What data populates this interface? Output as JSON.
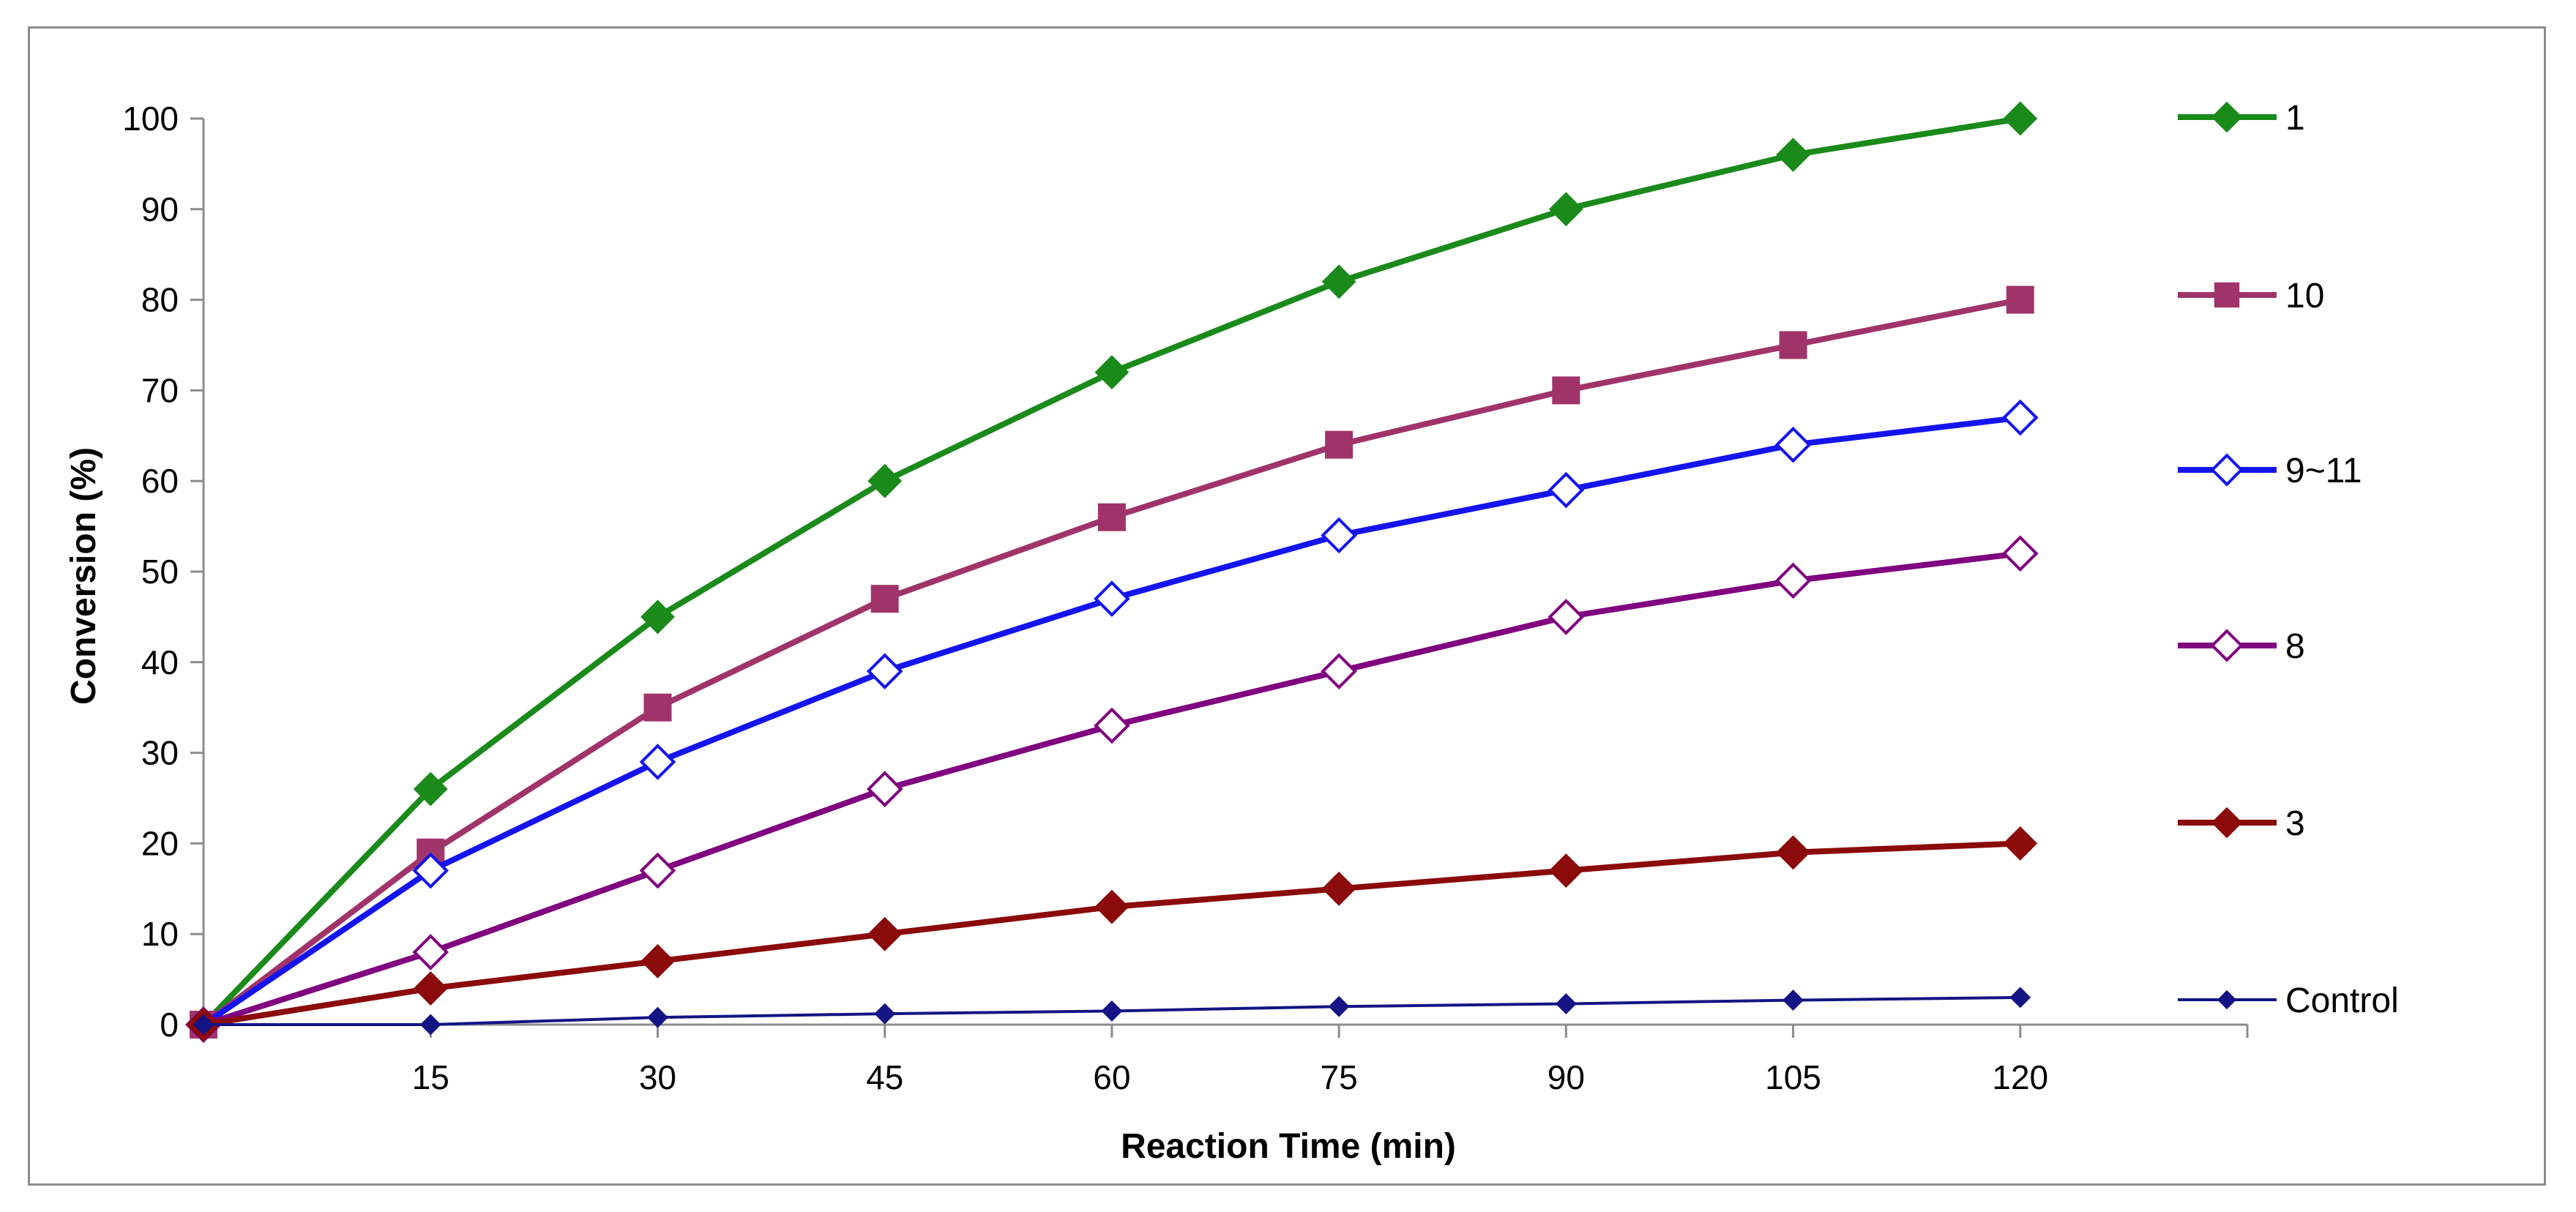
{
  "chart_data": {
    "type": "line",
    "title": "",
    "xlabel": "Reaction Time (min)",
    "ylabel": "Conversion (%)",
    "x": [
      0,
      15,
      30,
      45,
      60,
      75,
      90,
      105,
      120
    ],
    "x_tick_labels": [
      "15",
      "30",
      "45",
      "60",
      "75",
      "90",
      "105",
      "120"
    ],
    "x_tick_values": [
      15,
      30,
      45,
      60,
      75,
      90,
      105,
      120
    ],
    "xlim": [
      0,
      135
    ],
    "ylim": [
      0,
      100
    ],
    "y_ticks": [
      0,
      10,
      20,
      30,
      40,
      50,
      60,
      70,
      80,
      90,
      100
    ],
    "grid": false,
    "legend_position": "right",
    "series": [
      {
        "name": "1",
        "color": "#1a8a1a",
        "marker": "diamond-filled",
        "values": [
          0,
          26,
          45,
          60,
          72,
          82,
          90,
          96,
          100
        ]
      },
      {
        "name": "10",
        "color": "#a0346a",
        "marker": "square-filled",
        "values": [
          0,
          19,
          35,
          47,
          56,
          64,
          70,
          75,
          80
        ]
      },
      {
        "name": "9~11",
        "color": "#1414f0",
        "marker": "diamond-open",
        "values": [
          0,
          17,
          29,
          39,
          47,
          54,
          59,
          64,
          67
        ]
      },
      {
        "name": "8",
        "color": "#800080",
        "marker": "diamond-open",
        "values": [
          0,
          8,
          17,
          26,
          33,
          39,
          45,
          49,
          52
        ]
      },
      {
        "name": "3",
        "color": "#8b0a0a",
        "marker": "diamond-filled",
        "values": [
          0,
          4,
          7,
          10,
          13,
          15,
          17,
          19,
          20
        ]
      },
      {
        "name": "Control",
        "color": "#141485",
        "marker": "diamond-small",
        "values": [
          0,
          0,
          0.8,
          1.2,
          1.5,
          2,
          2.3,
          2.7,
          3
        ]
      }
    ]
  }
}
